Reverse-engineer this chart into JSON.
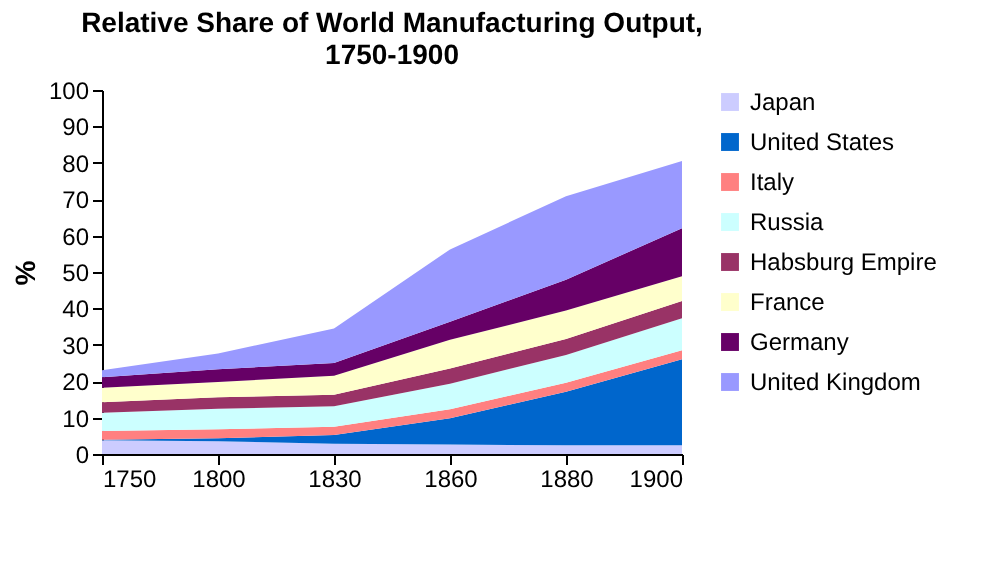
{
  "chart_data": {
    "type": "area",
    "title": "Relative Share of World Manufacturing Output, 1750-1900",
    "ylabel": "%",
    "categories": [
      "1750",
      "1800",
      "1830",
      "1860",
      "1880",
      "1900"
    ],
    "stacked": true,
    "ylim": [
      0,
      100
    ],
    "yticks": [
      0,
      10,
      20,
      30,
      40,
      50,
      60,
      70,
      80,
      90,
      100
    ],
    "grid": false,
    "legend": "right",
    "series": [
      {
        "name": "Japan",
        "color": "#ccccff",
        "values": [
          3.8,
          3.5,
          2.8,
          2.6,
          2.4,
          2.4
        ]
      },
      {
        "name": "United States",
        "color": "#0066cc",
        "values": [
          0.1,
          0.8,
          2.4,
          7.2,
          14.7,
          23.6
        ]
      },
      {
        "name": "Italy",
        "color": "#ff8080",
        "values": [
          2.4,
          2.5,
          2.3,
          2.5,
          2.5,
          2.5
        ]
      },
      {
        "name": "Russia",
        "color": "#ccffff",
        "values": [
          5.0,
          5.6,
          5.6,
          7.0,
          7.6,
          8.8
        ]
      },
      {
        "name": "Habsburg Empire",
        "color": "#993366",
        "values": [
          2.9,
          3.2,
          3.2,
          4.2,
          4.4,
          4.7
        ]
      },
      {
        "name": "France",
        "color": "#ffffcc",
        "values": [
          4.0,
          4.2,
          5.2,
          7.9,
          7.8,
          6.8
        ]
      },
      {
        "name": "Germany",
        "color": "#660066",
        "values": [
          2.9,
          3.5,
          3.5,
          4.9,
          8.5,
          13.2
        ]
      },
      {
        "name": "United Kingdom",
        "color": "#9999ff",
        "values": [
          1.9,
          4.3,
          9.5,
          19.9,
          22.9,
          18.5
        ]
      }
    ]
  }
}
